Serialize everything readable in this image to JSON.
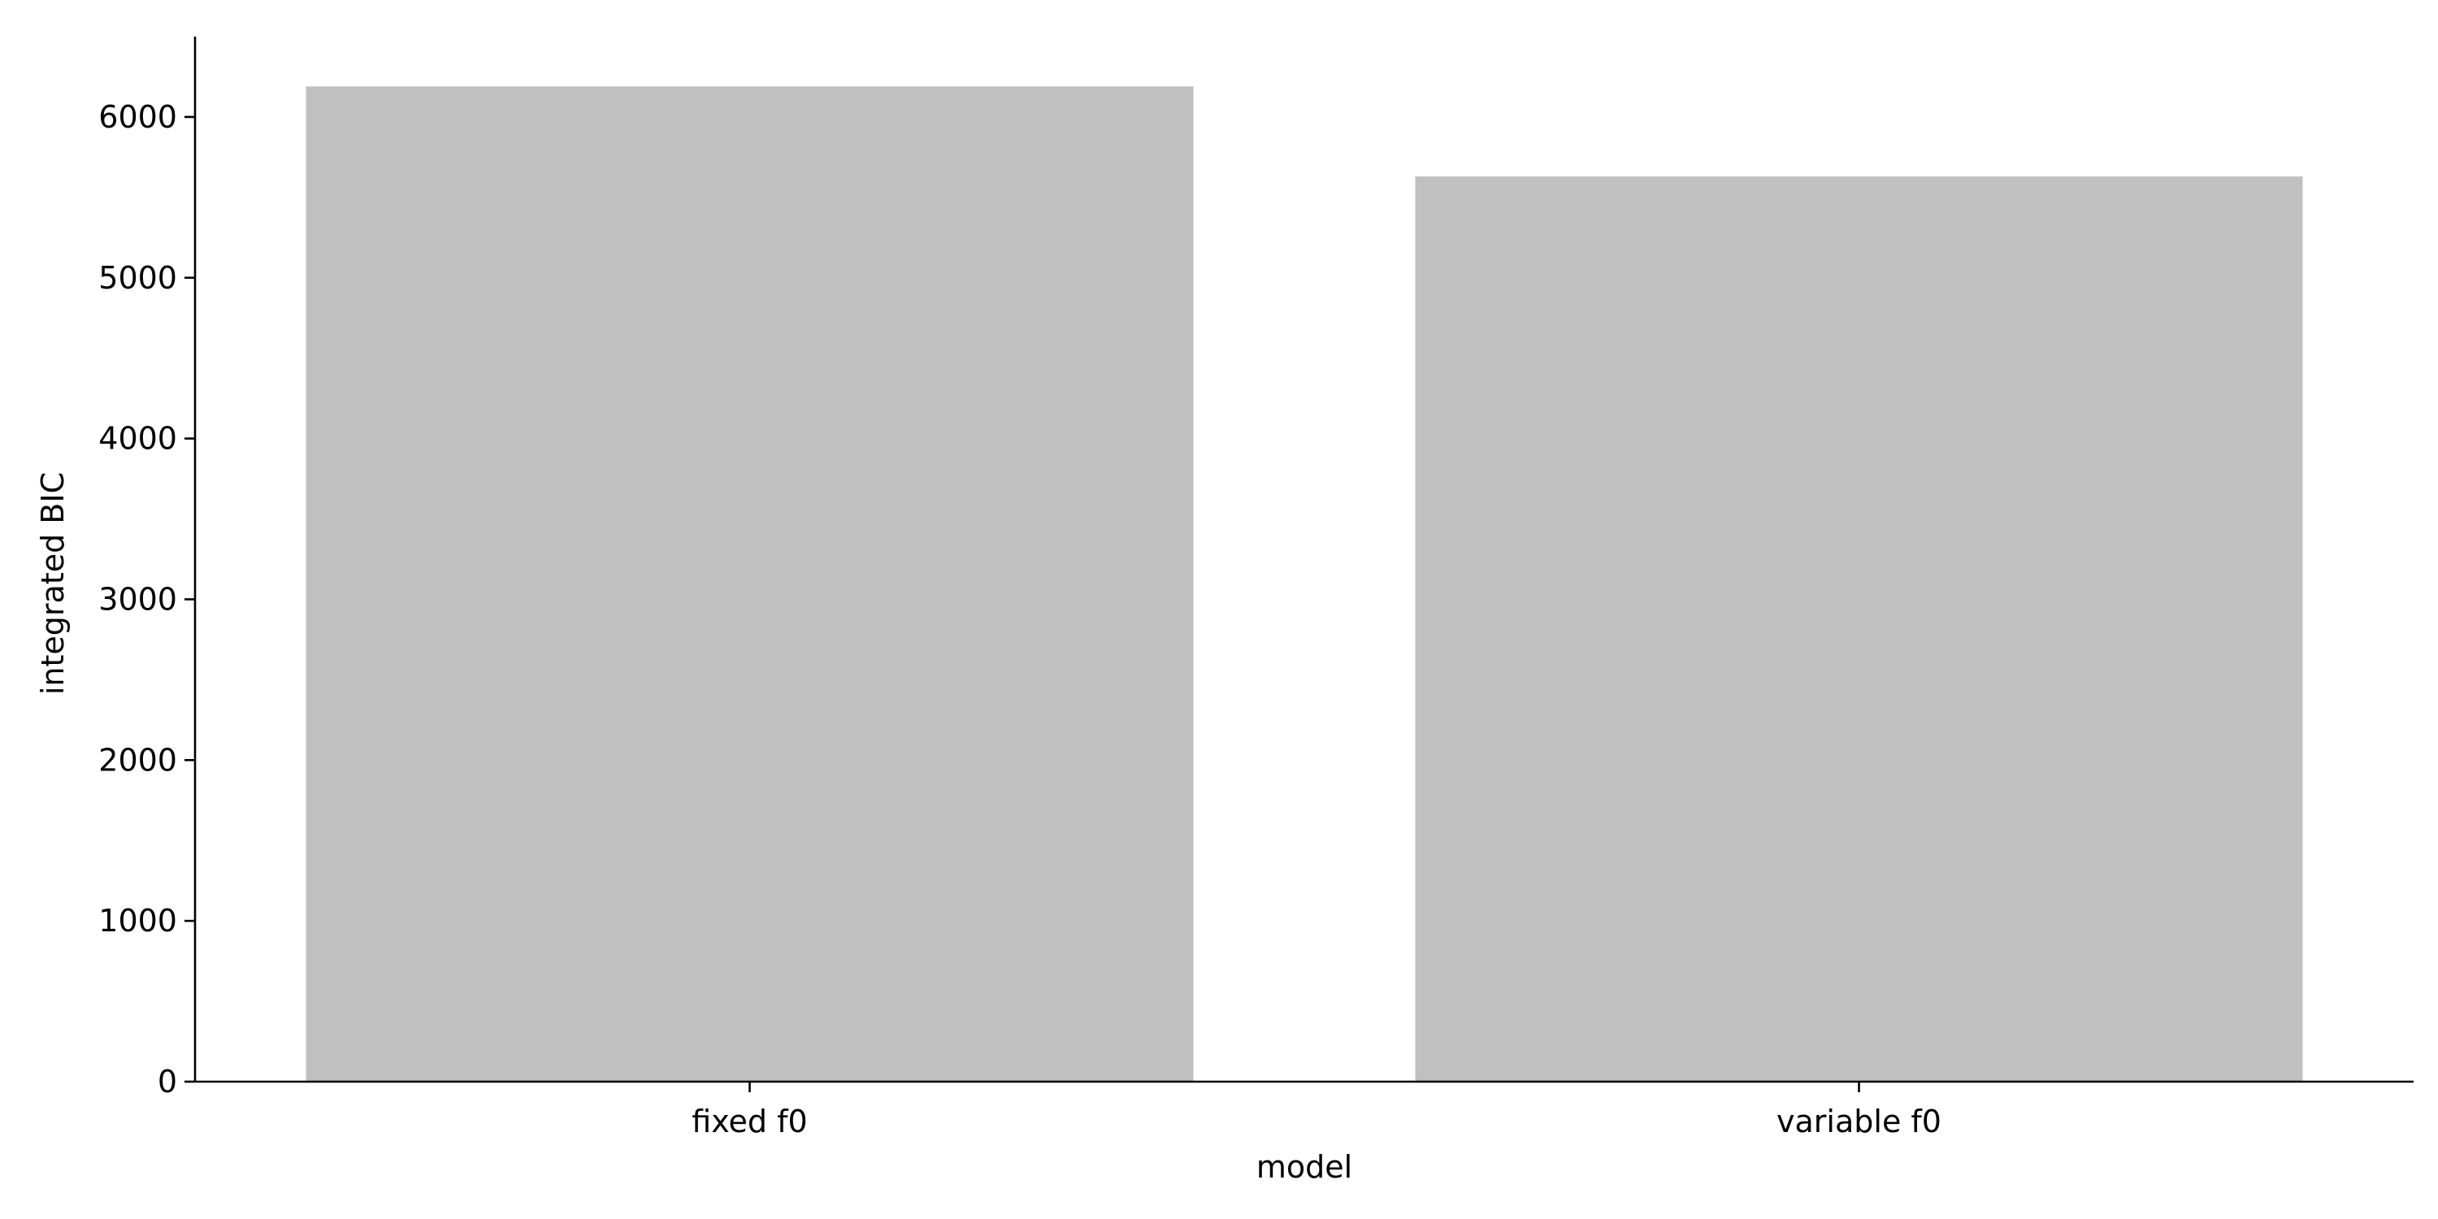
{
  "chart_data": {
    "type": "bar",
    "categories": [
      "fixed f0",
      "variable f0"
    ],
    "values": [
      6190,
      5630
    ],
    "xlabel": "model",
    "ylabel": "integrated BIC",
    "ylim": [
      0,
      6500
    ],
    "yticks": [
      0,
      1000,
      2000,
      3000,
      4000,
      5000,
      6000
    ],
    "grid": false,
    "bar_color": "#c0c0c0",
    "axis_color": "#000000"
  }
}
